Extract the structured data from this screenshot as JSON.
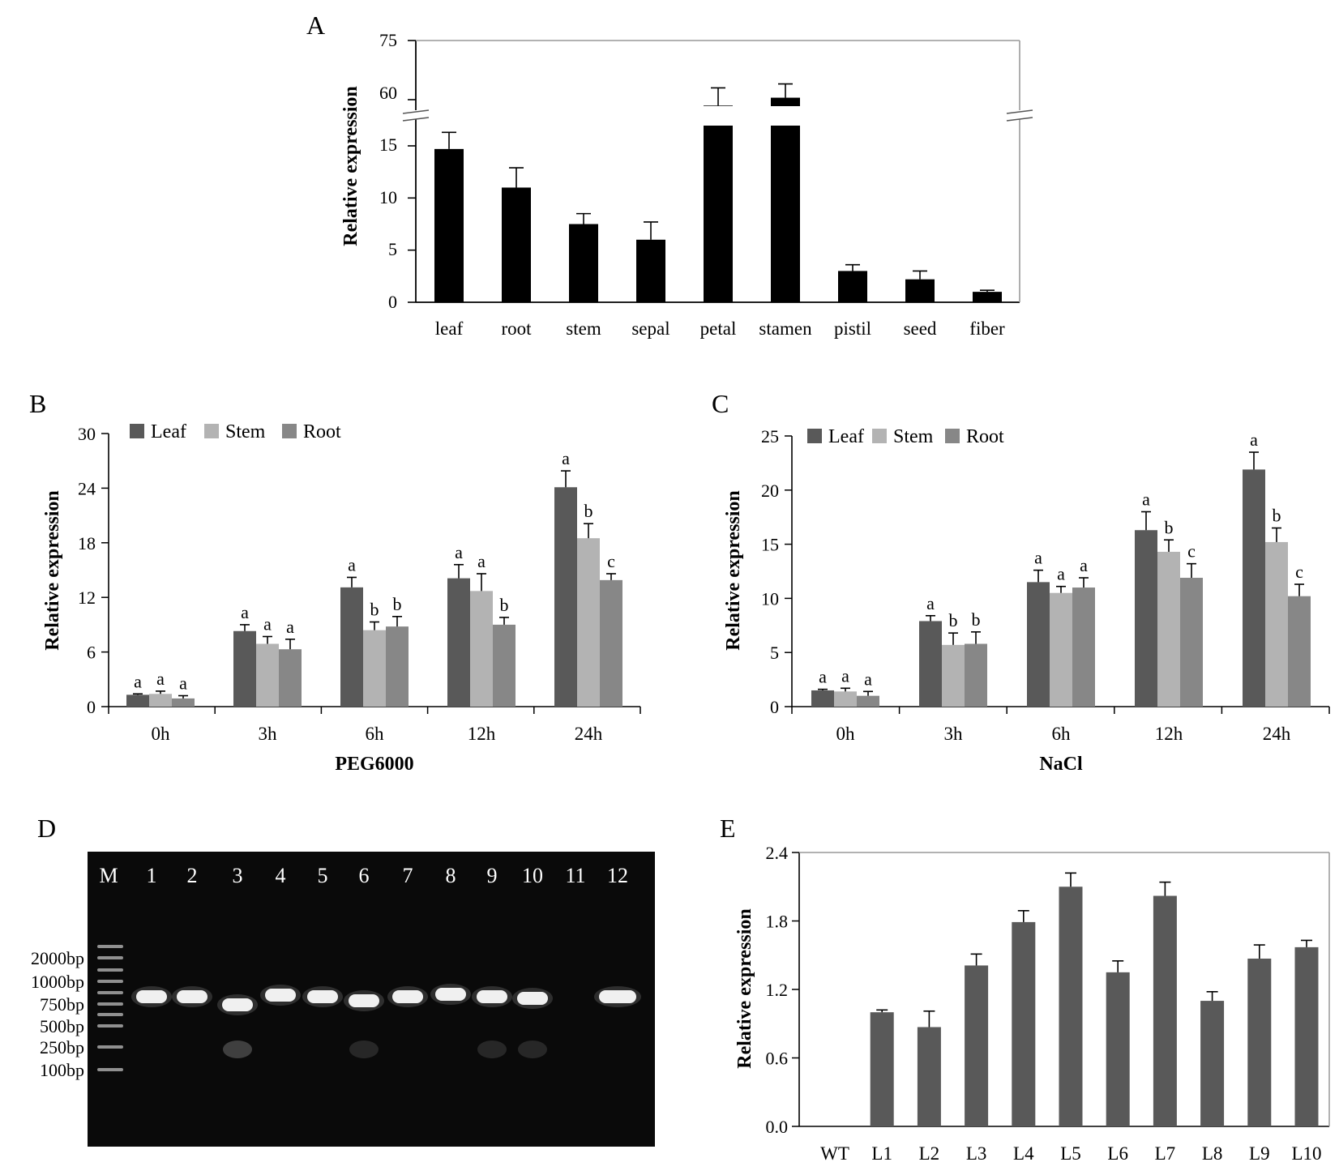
{
  "colors": {
    "panelA_bar": "#000000",
    "leaf": "#595959",
    "stem": "#b3b3b3",
    "root": "#878787",
    "panelE_bar": "#595959",
    "gel_bg": "#0a0a0a",
    "band": "#f0f0f0"
  },
  "chart_data": [
    {
      "panel": "A",
      "type": "bar",
      "panel_label": "A",
      "ylabel": "Relative expression",
      "xlabel": "",
      "broken_axis": true,
      "lower_segment": {
        "ylim": [
          0,
          18
        ],
        "ticks": [
          "0",
          "5",
          "10",
          "15"
        ]
      },
      "upper_segment": {
        "ylim": [
          55,
          75
        ],
        "ticks": [
          "60",
          "75"
        ]
      },
      "categories": [
        "leaf",
        "root",
        "stem",
        "sepal",
        "petal",
        "stamen",
        "pistil",
        "seed",
        "fiber"
      ],
      "values": [
        14.7,
        11.0,
        7.5,
        6.0,
        58.5,
        60.5,
        3.0,
        2.2,
        1.0
      ],
      "errors": [
        1.6,
        1.9,
        1.0,
        1.7,
        4.5,
        3.5,
        0.6,
        0.8,
        0.15
      ]
    },
    {
      "panel": "B",
      "type": "bar",
      "panel_label": "B",
      "ylabel": "Relative expression",
      "xlabel": "PEG6000",
      "ylim": [
        0,
        30
      ],
      "ticks": [
        "0",
        "6",
        "12",
        "18",
        "24",
        "30"
      ],
      "categories": [
        "0h",
        "3h",
        "6h",
        "12h",
        "24h"
      ],
      "series": [
        {
          "name": "Leaf",
          "values": [
            1.3,
            8.3,
            13.1,
            14.1,
            24.1
          ],
          "errors": [
            0.1,
            0.7,
            1.1,
            1.5,
            1.8
          ],
          "letters": [
            "a",
            "a",
            "a",
            "a",
            "a"
          ]
        },
        {
          "name": "Stem",
          "values": [
            1.4,
            6.9,
            8.4,
            12.7,
            18.5
          ],
          "errors": [
            0.3,
            0.8,
            0.9,
            1.9,
            1.6
          ],
          "letters": [
            "a",
            "a",
            "b",
            "a",
            "b"
          ]
        },
        {
          "name": "Root",
          "values": [
            0.9,
            6.3,
            8.8,
            9.0,
            13.9
          ],
          "errors": [
            0.3,
            1.1,
            1.1,
            0.8,
            0.7
          ],
          "letters": [
            "a",
            "a",
            "b",
            "b",
            "c"
          ]
        }
      ]
    },
    {
      "panel": "C",
      "type": "bar",
      "panel_label": "C",
      "ylabel": "Relative expression",
      "xlabel": "NaCl",
      "ylim": [
        0,
        25
      ],
      "ticks": [
        "0",
        "5",
        "10",
        "15",
        "20",
        "25"
      ],
      "categories": [
        "0h",
        "3h",
        "6h",
        "12h",
        "24h"
      ],
      "series": [
        {
          "name": "Leaf",
          "values": [
            1.5,
            7.9,
            11.5,
            16.3,
            21.9
          ],
          "errors": [
            0.1,
            0.5,
            1.1,
            1.7,
            1.6
          ],
          "letters": [
            "a",
            "a",
            "a",
            "a",
            "a"
          ]
        },
        {
          "name": "Stem",
          "values": [
            1.4,
            5.7,
            10.5,
            14.3,
            15.2
          ],
          "errors": [
            0.3,
            1.1,
            0.6,
            1.1,
            1.3
          ],
          "letters": [
            "a",
            "b",
            "a",
            "b",
            "b"
          ]
        },
        {
          "name": "Root",
          "values": [
            1.0,
            5.8,
            11.0,
            11.9,
            10.2
          ],
          "errors": [
            0.4,
            1.1,
            0.9,
            1.3,
            1.1
          ],
          "letters": [
            "a",
            "b",
            "a",
            "c",
            "c"
          ]
        }
      ]
    },
    {
      "panel": "E",
      "type": "bar",
      "panel_label": "E",
      "ylabel": "Relative expression",
      "xlabel": "",
      "ylim": [
        0,
        2.4
      ],
      "ticks": [
        "0.0",
        "0.6",
        "1.2",
        "1.8",
        "2.4"
      ],
      "categories": [
        "WT",
        "L1",
        "L2",
        "L3",
        "L4",
        "L5",
        "L6",
        "L7",
        "L8",
        "L9",
        "L10"
      ],
      "values": [
        0,
        1.0,
        0.87,
        1.41,
        1.79,
        2.1,
        1.35,
        2.02,
        1.1,
        1.47,
        1.57
      ],
      "errors": [
        0,
        0.02,
        0.14,
        0.1,
        0.1,
        0.12,
        0.1,
        0.12,
        0.08,
        0.12,
        0.06
      ]
    }
  ],
  "gel": {
    "panel_label": "D",
    "lanes": [
      "M",
      "1",
      "2",
      "3",
      "4",
      "5",
      "6",
      "7",
      "8",
      "9",
      "10",
      "11",
      "12"
    ],
    "markers": [
      "2000bp",
      "1000bp",
      "750bp",
      "500bp",
      "250bp",
      "100bp"
    ]
  }
}
